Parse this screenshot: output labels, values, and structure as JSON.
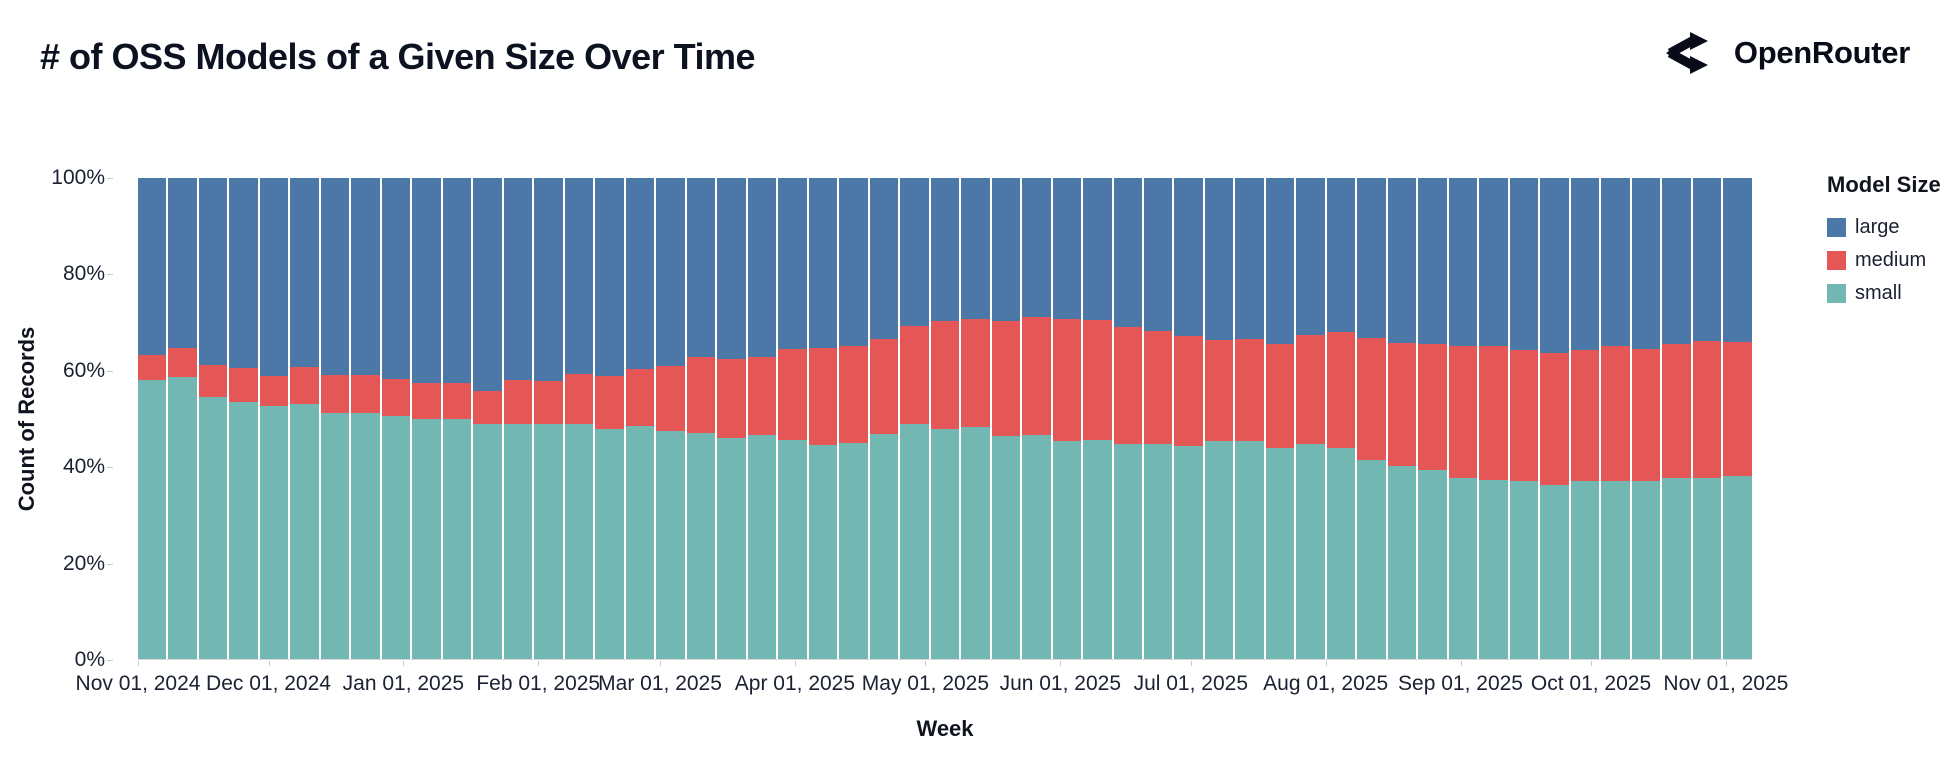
{
  "header": {
    "title": "# of OSS Models of a Given Size Over Time",
    "brand": {
      "name": "OpenRouter"
    }
  },
  "chart_data": {
    "type": "bar",
    "stacked": true,
    "normalized_percent": true,
    "title": "# of OSS Models of a Given Size Over Time",
    "xlabel": "Week",
    "ylabel": "Count of Records",
    "ylim": [
      0,
      100
    ],
    "y_tick_labels": [
      "0%",
      "20%",
      "40%",
      "60%",
      "80%",
      "100%"
    ],
    "x_tick_labels": [
      "Nov 01, 2024",
      "Dec 01, 2024",
      "Jan 01, 2025",
      "Feb 01, 2025",
      "Mar 01, 2025",
      "Apr 01, 2025",
      "May 01, 2025",
      "Jun 01, 2025",
      "Jul 01, 2025",
      "Aug 01, 2025",
      "Sep 01, 2025",
      "Oct 01, 2025",
      "Nov 01, 2025"
    ],
    "x_tick_day_offsets": [
      0,
      30,
      61,
      92,
      120,
      151,
      181,
      212,
      242,
      273,
      304,
      334,
      365
    ],
    "x_domain_days": 371,
    "legend": {
      "title": "Model Size",
      "position": "right"
    },
    "stack_order_bottom_to_top": [
      "small",
      "medium",
      "large"
    ],
    "categories": [
      "2024-11-01",
      "2024-11-08",
      "2024-11-15",
      "2024-11-22",
      "2024-11-29",
      "2024-12-06",
      "2024-12-13",
      "2024-12-20",
      "2024-12-27",
      "2025-01-03",
      "2025-01-10",
      "2025-01-17",
      "2025-01-24",
      "2025-01-31",
      "2025-02-07",
      "2025-02-14",
      "2025-02-21",
      "2025-02-28",
      "2025-03-07",
      "2025-03-14",
      "2025-03-21",
      "2025-03-28",
      "2025-04-04",
      "2025-04-11",
      "2025-04-18",
      "2025-04-25",
      "2025-05-02",
      "2025-05-09",
      "2025-05-16",
      "2025-05-23",
      "2025-05-30",
      "2025-06-06",
      "2025-06-13",
      "2025-06-20",
      "2025-06-27",
      "2025-07-04",
      "2025-07-11",
      "2025-07-18",
      "2025-07-25",
      "2025-08-01",
      "2025-08-08",
      "2025-08-15",
      "2025-08-22",
      "2025-08-29",
      "2025-09-05",
      "2025-09-12",
      "2025-09-19",
      "2025-09-26",
      "2025-10-03",
      "2025-10-10",
      "2025-10-17",
      "2025-10-24",
      "2025-10-31"
    ],
    "series": [
      {
        "name": "large",
        "color": "#4c78a8",
        "values": [
          36.9,
          35.3,
          38.9,
          39.4,
          41.1,
          39.2,
          40.9,
          40.9,
          41.7,
          42.7,
          42.7,
          44.3,
          41.9,
          42.1,
          40.7,
          41.1,
          39.8,
          39.0,
          37.2,
          37.6,
          37.3,
          35.5,
          35.3,
          34.9,
          33.4,
          30.8,
          29.7,
          29.3,
          29.7,
          28.9,
          29.3,
          29.5,
          31.0,
          31.9,
          32.8,
          33.6,
          33.4,
          34.5,
          32.6,
          32.1,
          33.3,
          34.2,
          34.6,
          34.9,
          34.9,
          35.8,
          36.4,
          35.7,
          34.9,
          35.5,
          34.6,
          33.8,
          34.1
        ]
      },
      {
        "name": "medium",
        "color": "#e45756",
        "values": [
          5.0,
          6.0,
          6.7,
          7.1,
          6.4,
          7.7,
          7.9,
          7.9,
          7.7,
          7.5,
          7.5,
          6.9,
          9.2,
          9.1,
          10.4,
          11.0,
          11.7,
          13.5,
          15.8,
          16.4,
          16.2,
          18.9,
          20.2,
          20.1,
          19.9,
          20.4,
          22.4,
          22.5,
          24.0,
          24.6,
          25.4,
          24.9,
          24.4,
          23.4,
          22.9,
          21.0,
          21.3,
          21.6,
          22.7,
          24.0,
          25.4,
          25.6,
          26.2,
          27.4,
          27.8,
          27.1,
          27.5,
          27.2,
          28.0,
          27.5,
          27.7,
          28.6,
          27.9
        ]
      },
      {
        "name": "small",
        "color": "#72b7b2",
        "values": [
          58.1,
          58.7,
          54.4,
          53.5,
          52.5,
          53.1,
          51.2,
          51.2,
          50.6,
          49.8,
          49.8,
          48.8,
          48.9,
          48.8,
          48.9,
          47.9,
          48.5,
          47.5,
          47.0,
          46.0,
          46.5,
          45.6,
          44.5,
          45.0,
          46.7,
          48.8,
          47.9,
          48.2,
          46.3,
          46.5,
          45.3,
          45.6,
          44.6,
          44.7,
          44.3,
          45.4,
          45.3,
          43.9,
          44.7,
          43.9,
          41.3,
          40.2,
          39.2,
          37.7,
          37.3,
          37.1,
          36.1,
          37.1,
          37.1,
          37.0,
          37.7,
          37.6,
          38.0
        ]
      }
    ]
  }
}
